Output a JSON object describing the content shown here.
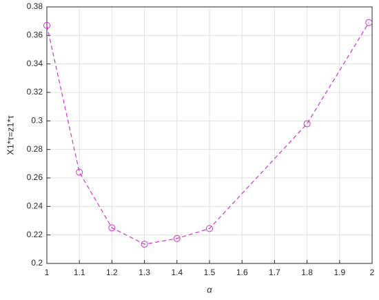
{
  "chart_data": {
    "type": "line",
    "x_label": "α",
    "y_label": "X1*τ=z1*τ",
    "x": [
      1,
      1.1,
      1.2,
      1.3,
      1.4,
      1.5,
      1.8,
      1.99
    ],
    "series": [
      {
        "color": "#cc33cc",
        "values": [
          0.367,
          0.264,
          0.225,
          0.2135,
          0.2175,
          0.2245,
          0.298,
          0.369
        ]
      }
    ],
    "xlim": [
      1,
      2
    ],
    "xticks": [
      1,
      1.1,
      1.2,
      1.3,
      1.4,
      1.5,
      1.6,
      1.7,
      1.8,
      1.9,
      2
    ],
    "ylim": [
      0.2,
      0.38
    ],
    "yticks": [
      0.2,
      0.22,
      0.24,
      0.26,
      0.28,
      0.3,
      0.32,
      0.34,
      0.36,
      0.38
    ],
    "grid": true
  }
}
